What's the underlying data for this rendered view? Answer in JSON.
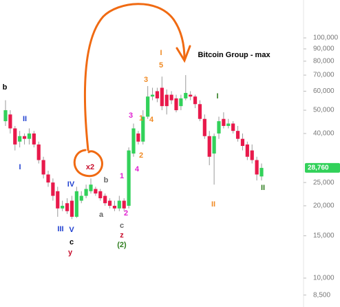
{
  "chart_data": {
    "type": "candlestick",
    "title": "Bitcoin Group - max",
    "log_scale": true,
    "up_color": "#32d15a",
    "down_color": "#e8194b",
    "open": [
      45000,
      48000,
      42000,
      37000,
      39000,
      38000,
      40000,
      36000,
      31000,
      27000,
      25000,
      23000,
      19500,
      20500,
      21000,
      18000,
      21000,
      22000,
      23000,
      23500,
      23000,
      22000,
      21000,
      20000,
      19500,
      21000,
      20000,
      33000,
      40000,
      37000,
      47000,
      57000,
      60000,
      62000,
      58000,
      58000,
      56000,
      52000,
      56000,
      58000,
      57000,
      53000,
      46000,
      39000,
      33000,
      40000,
      46000,
      43000,
      44000,
      41000,
      38000,
      36000,
      34000,
      31000,
      26500
    ],
    "high": [
      55000,
      50000,
      43000,
      41000,
      40000,
      42000,
      41000,
      37000,
      32000,
      28000,
      26000,
      24000,
      21000,
      21500,
      22000,
      24000,
      23000,
      24500,
      26000,
      24000,
      23500,
      22500,
      21500,
      21000,
      22000,
      21500,
      35000,
      44000,
      41000,
      50000,
      63000,
      62000,
      62000,
      69000,
      61000,
      60000,
      58000,
      58000,
      70000,
      60000,
      58000,
      55000,
      48000,
      41000,
      40000,
      47000,
      49000,
      46000,
      45000,
      43000,
      40000,
      37000,
      36000,
      32000,
      30000
    ],
    "low": [
      43000,
      40000,
      34000,
      35000,
      36000,
      36000,
      35000,
      30000,
      26000,
      24000,
      21000,
      18000,
      19000,
      18500,
      17600,
      17800,
      20500,
      21500,
      22500,
      22000,
      21000,
      20000,
      19500,
      19000,
      19000,
      19000,
      19500,
      32000,
      36000,
      36000,
      46000,
      55000,
      54000,
      50000,
      48000,
      53000,
      49000,
      50000,
      55000,
      55000,
      51000,
      45000,
      38000,
      29500,
      24500,
      38000,
      42000,
      42000,
      40000,
      37000,
      34000,
      31000,
      30000,
      25500,
      25500
    ],
    "close": [
      50000,
      42000,
      36000,
      39000,
      38000,
      40000,
      36000,
      31000,
      27000,
      25000,
      22000,
      19500,
      20000,
      19000,
      18000,
      23000,
      22000,
      23500,
      24500,
      22500,
      21500,
      20500,
      20000,
      19500,
      21000,
      19500,
      34000,
      42000,
      37000,
      47000,
      57000,
      58000,
      56000,
      52000,
      52000,
      55000,
      50000,
      56000,
      59000,
      57000,
      53000,
      46000,
      39000,
      32000,
      39000,
      45000,
      43000,
      44000,
      41000,
      38000,
      35500,
      32000,
      31000,
      27000,
      28760
    ],
    "last_price": {
      "value": 28760,
      "label": "28,760"
    },
    "ylim": [
      7580,
      143800
    ],
    "yticks": [
      {
        "value": 8500,
        "label": "8,500"
      },
      {
        "value": 10000,
        "label": "10,000"
      },
      {
        "value": 15000,
        "label": "15,000"
      },
      {
        "value": 20000,
        "label": "20,000"
      },
      {
        "value": 25000,
        "label": "25,000"
      },
      {
        "value": 40000,
        "label": "40,000"
      },
      {
        "value": 50000,
        "label": "50,000"
      },
      {
        "value": 60000,
        "label": "60,000"
      },
      {
        "value": 70000,
        "label": "70,000"
      },
      {
        "value": 80000,
        "label": "80,000"
      },
      {
        "value": 90000,
        "label": "90,000"
      },
      {
        "value": 100000,
        "label": "100,000"
      }
    ],
    "annotations": [
      "b",
      "II",
      "I",
      "III",
      "IV",
      "V",
      "c",
      "y",
      "x2",
      "b",
      "a",
      "1",
      "2",
      "c",
      "z",
      "(2)",
      "3",
      "4",
      "1",
      "2",
      "3",
      "4",
      "5",
      "I",
      "I",
      "II",
      "II"
    ]
  }
}
